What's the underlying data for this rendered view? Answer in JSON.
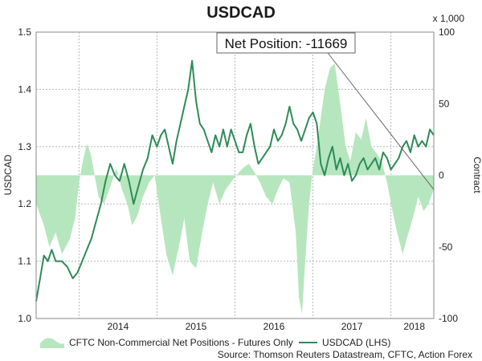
{
  "chart_data": {
    "type": "line",
    "title": "USDCAD",
    "left_axis": {
      "label": "USDCAD",
      "ylim": [
        1.0,
        1.5
      ],
      "ticks": [
        "1.0",
        "1.1",
        "1.2",
        "1.3",
        "1.4",
        "1.5"
      ]
    },
    "right_axis": {
      "label": "Contract",
      "unit_note": "x 1,000",
      "ylim": [
        -100,
        100
      ],
      "ticks": [
        "100",
        "50",
        "0",
        "-50",
        "-100"
      ]
    },
    "xlim": [
      2013.45,
      2018.55
    ],
    "x_ticks": [
      "2014",
      "2015",
      "2016",
      "2017",
      "2018"
    ],
    "grid": true,
    "legend_position": "bottom",
    "annotation": "Net Position: -11669",
    "source": "Source: Thomson Reuters Datastream, CFTC, Action Forex",
    "colors": {
      "usdcad": "#2e8b57",
      "positions_fill": "#b6e6bd",
      "grid": "#b8b8b8"
    },
    "series": [
      {
        "name": "CFTC Non-Commercial Net Positions - Futures Only",
        "axis": "right",
        "style": "area",
        "x": [
          2013.45,
          2013.55,
          2013.62,
          2013.7,
          2013.78,
          2013.88,
          2013.95,
          2014.0,
          2014.05,
          2014.1,
          2014.15,
          2014.2,
          2014.25,
          2014.32,
          2014.4,
          2014.48,
          2014.55,
          2014.62,
          2014.68,
          2014.75,
          2014.82,
          2014.9,
          2014.97,
          2015.05,
          2015.12,
          2015.2,
          2015.28,
          2015.35,
          2015.42,
          2015.5,
          2015.58,
          2015.65,
          2015.72,
          2015.8,
          2015.88,
          2015.95,
          2016.02,
          2016.1,
          2016.18,
          2016.25,
          2016.32,
          2016.4,
          2016.48,
          2016.55,
          2016.62,
          2016.7,
          2016.78,
          2016.82,
          2016.86,
          2016.9,
          2016.95,
          2017.0,
          2017.05,
          2017.1,
          2017.15,
          2017.22,
          2017.28,
          2017.35,
          2017.42,
          2017.48,
          2017.55,
          2017.62,
          2017.68,
          2017.75,
          2017.82,
          2017.88,
          2017.95,
          2018.02,
          2018.08,
          2018.15,
          2018.2,
          2018.28,
          2018.35,
          2018.42,
          2018.48,
          2018.55
        ],
        "values": [
          -20,
          -35,
          -50,
          -40,
          -55,
          -45,
          -30,
          -5,
          10,
          22,
          15,
          0,
          -15,
          -20,
          -8,
          5,
          -10,
          -20,
          -35,
          -28,
          -15,
          -5,
          0,
          -30,
          -55,
          -70,
          -50,
          -30,
          -60,
          -65,
          -40,
          -20,
          -5,
          -20,
          -10,
          -5,
          0,
          5,
          8,
          2,
          -5,
          -15,
          -20,
          -10,
          -2,
          -5,
          -40,
          -85,
          -97,
          -60,
          -20,
          5,
          20,
          40,
          60,
          75,
          78,
          50,
          20,
          10,
          30,
          25,
          40,
          20,
          15,
          10,
          -5,
          -25,
          -40,
          -55,
          -45,
          -30,
          -15,
          -25,
          -20,
          -10
        ]
      },
      {
        "name": "USDCAD (LHS)",
        "axis": "left",
        "style": "line",
        "x": [
          2013.45,
          2013.5,
          2013.55,
          2013.6,
          2013.65,
          2013.7,
          2013.78,
          2013.85,
          2013.92,
          2013.98,
          2014.04,
          2014.1,
          2014.16,
          2014.22,
          2014.28,
          2014.34,
          2014.4,
          2014.46,
          2014.52,
          2014.58,
          2014.64,
          2014.7,
          2014.76,
          2014.82,
          2014.88,
          2014.94,
          2015.0,
          2015.05,
          2015.1,
          2015.15,
          2015.2,
          2015.25,
          2015.3,
          2015.35,
          2015.4,
          2015.45,
          2015.5,
          2015.55,
          2015.6,
          2015.65,
          2015.7,
          2015.75,
          2015.8,
          2015.85,
          2015.9,
          2015.95,
          2016.0,
          2016.05,
          2016.1,
          2016.15,
          2016.2,
          2016.25,
          2016.3,
          2016.35,
          2016.4,
          2016.45,
          2016.5,
          2016.55,
          2016.6,
          2016.65,
          2016.7,
          2016.75,
          2016.8,
          2016.85,
          2016.9,
          2016.95,
          2017.0,
          2017.05,
          2017.1,
          2017.15,
          2017.2,
          2017.25,
          2017.3,
          2017.35,
          2017.4,
          2017.45,
          2017.5,
          2017.55,
          2017.6,
          2017.65,
          2017.7,
          2017.75,
          2017.8,
          2017.85,
          2017.9,
          2017.95,
          2018.0,
          2018.05,
          2018.1,
          2018.15,
          2018.2,
          2018.25,
          2018.3,
          2018.35,
          2018.4,
          2018.45,
          2018.5,
          2018.55
        ],
        "values": [
          1.03,
          1.07,
          1.11,
          1.1,
          1.12,
          1.1,
          1.1,
          1.09,
          1.07,
          1.08,
          1.1,
          1.12,
          1.14,
          1.17,
          1.2,
          1.24,
          1.27,
          1.25,
          1.24,
          1.27,
          1.24,
          1.2,
          1.23,
          1.26,
          1.28,
          1.32,
          1.3,
          1.32,
          1.33,
          1.3,
          1.27,
          1.31,
          1.34,
          1.37,
          1.4,
          1.45,
          1.38,
          1.34,
          1.33,
          1.31,
          1.29,
          1.32,
          1.3,
          1.33,
          1.3,
          1.33,
          1.31,
          1.29,
          1.29,
          1.32,
          1.34,
          1.3,
          1.27,
          1.28,
          1.29,
          1.3,
          1.33,
          1.31,
          1.32,
          1.34,
          1.37,
          1.34,
          1.33,
          1.31,
          1.33,
          1.35,
          1.36,
          1.34,
          1.27,
          1.25,
          1.28,
          1.3,
          1.26,
          1.28,
          1.25,
          1.27,
          1.24,
          1.25,
          1.27,
          1.28,
          1.26,
          1.27,
          1.28,
          1.26,
          1.29,
          1.28,
          1.26,
          1.27,
          1.28,
          1.3,
          1.31,
          1.29,
          1.32,
          1.3,
          1.31,
          1.3,
          1.33,
          1.32
        ]
      }
    ]
  }
}
